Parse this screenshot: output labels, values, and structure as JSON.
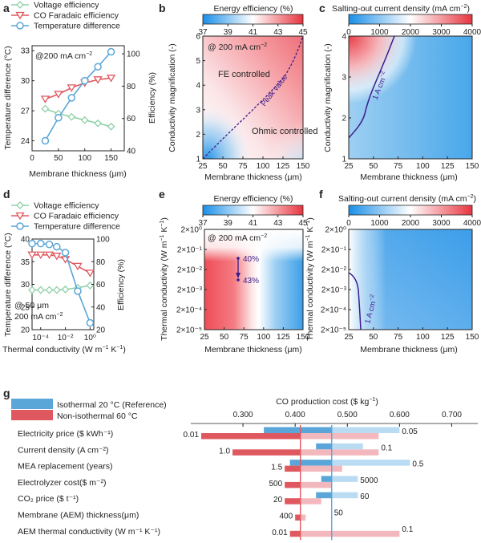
{
  "colors": {
    "blue": "#5aa6d8",
    "red": "#e0585f",
    "green": "#8fd1a8",
    "purple": "#3b1b8c",
    "dark_blue": "#2f5fa0",
    "pink": "#f3b8bd",
    "lightblue": "#b9dcf3"
  },
  "chart_data": [
    {
      "id": "a",
      "type": "line",
      "panel_letter": "a",
      "title": "",
      "annotation": "@200 mA cm⁻²",
      "annotation_html": "@200 mA cm<tspan dy='-4' font-size='7'>−2</tspan>",
      "xlabel": "Membrane thickness (μm)",
      "ylabel_left": "Temperature difference (°C)",
      "ylabel_right": "Efficiency (%)",
      "xlim": [
        0,
        175
      ],
      "ylim_left": [
        23,
        33.5
      ],
      "ylim_right": [
        40,
        105
      ],
      "x_ticks": [
        "0",
        "50",
        "100",
        "150"
      ],
      "y_ticks_left": [
        "24",
        "27",
        "30",
        "33"
      ],
      "y_ticks_right": [
        "40",
        "60",
        "80",
        "100"
      ],
      "legend": [
        "Voltage efficiency",
        "CO Faradaic efficiency",
        "Temperature difference"
      ],
      "series": [
        {
          "name": "Voltage efficiency",
          "axis": "right",
          "x": [
            25,
            50,
            75,
            100,
            125,
            150
          ],
          "y": [
            66,
            63,
            61,
            59,
            57,
            55
          ]
        },
        {
          "name": "CO Faradaic efficiency",
          "axis": "right",
          "x": [
            25,
            50,
            75,
            100,
            125,
            150
          ],
          "y": [
            72,
            75,
            79,
            82,
            84,
            85
          ]
        },
        {
          "name": "Temperature difference",
          "axis": "left",
          "x": [
            25,
            50,
            75,
            100,
            125,
            150
          ],
          "y": [
            24.0,
            26.3,
            28.3,
            30.0,
            31.4,
            32.9
          ]
        }
      ]
    },
    {
      "id": "b",
      "type": "heatmap",
      "panel_letter": "b",
      "colorbar_title": "Energy efficiency (%)",
      "colorbar_ticks": [
        "37",
        "39",
        "41",
        "43",
        "45"
      ],
      "xlabel": "Membrane thickness (μm)",
      "ylabel": "Conductivity magnification (-)",
      "xlim": [
        25,
        150
      ],
      "ylim": [
        1,
        6
      ],
      "x_ticks": [
        "25",
        "50",
        "75",
        "100",
        "125",
        "150"
      ],
      "y_ticks": [
        "1",
        "2",
        "3",
        "4",
        "5",
        "6"
      ],
      "annotations": [
        "@ 200 mA cm⁻²",
        "FE controlled",
        "Ohmic controlled",
        "Peak value"
      ]
    },
    {
      "id": "c",
      "type": "heatmap",
      "panel_letter": "c",
      "colorbar_title": "Salting-out current density (mA cm⁻²)",
      "colorbar_ticks": [
        "0",
        "1000",
        "2000",
        "3000",
        "4000"
      ],
      "xlabel": "Membrane thickness (μm)",
      "ylabel": "Conductivity magnification (-)",
      "xlim": [
        25,
        150
      ],
      "ylim": [
        1,
        4
      ],
      "x_ticks": [
        "25",
        "50",
        "75",
        "100",
        "125",
        "150"
      ],
      "y_ticks": [
        "1",
        "2",
        "3",
        "4"
      ],
      "contour_label": "1 A cm⁻²"
    },
    {
      "id": "d",
      "type": "line",
      "panel_letter": "d",
      "xlabel": "Thermal conductivity (W m⁻¹ K⁻¹)",
      "ylabel_left": "Temperature difference (°C)",
      "ylabel_right": "Efficiency (%)",
      "ylim_left": [
        20,
        40
      ],
      "ylim_right": [
        20,
        100
      ],
      "x_ticks": [
        "10⁻⁴",
        "10⁻²",
        "10⁰"
      ],
      "y_ticks_left": [
        "20",
        "25",
        "30",
        "35",
        "40"
      ],
      "y_ticks_right": [
        "20",
        "40",
        "60",
        "80",
        "100"
      ],
      "annotations": [
        "@ 50 μm",
        "200 mA cm⁻²"
      ],
      "legend": [
        "Voltage efficiency",
        "CO Faradaic efficiency",
        "Temperature difference"
      ],
      "series": [
        {
          "name": "Voltage efficiency",
          "axis": "right",
          "x": [
            2e-05,
            0.0001,
            0.0005,
            0.002,
            0.01,
            0.1,
            1
          ],
          "y": [
            55,
            55,
            55,
            55,
            55.5,
            57,
            59
          ]
        },
        {
          "name": "CO Faradaic efficiency",
          "axis": "right",
          "x": [
            2e-05,
            0.0001,
            0.0005,
            0.002,
            0.01,
            0.1,
            1
          ],
          "y": [
            86,
            86,
            86,
            85,
            82,
            76,
            70
          ]
        },
        {
          "name": "Temperature difference",
          "axis": "left",
          "x": [
            2e-05,
            0.0001,
            0.0005,
            0.002,
            0.01,
            0.1,
            1
          ],
          "y": [
            39,
            39,
            38.8,
            38.3,
            37,
            28.5,
            21.5
          ]
        }
      ]
    },
    {
      "id": "e",
      "type": "heatmap",
      "panel_letter": "e",
      "colorbar_title": "Energy efficiency (%)",
      "colorbar_ticks": [
        "37",
        "39",
        "41",
        "43",
        "45"
      ],
      "xlabel": "Membrane thickness (μm)",
      "ylabel": "Thermal conductivity (W m⁻¹ K⁻¹)",
      "x_ticks": [
        "25",
        "50",
        "75",
        "100",
        "125",
        "150"
      ],
      "y_ticks": [
        "2×10⁰",
        "2×10⁻¹",
        "2×10⁻²",
        "2×10⁻³",
        "2×10⁻⁴",
        "2×10⁻⁵"
      ],
      "annotations": [
        "@ 200 mA cm⁻²",
        "40%",
        "43%"
      ]
    },
    {
      "id": "f",
      "type": "heatmap",
      "panel_letter": "f",
      "colorbar_title": "Salting-out current density (mA cm⁻²)",
      "colorbar_ticks": [
        "0",
        "1000",
        "2000",
        "3000",
        "4000"
      ],
      "xlabel": "Membrane thickness (μm)",
      "ylabel": "Thermal conductivity (W m⁻¹ K⁻¹)",
      "x_ticks": [
        "25",
        "50",
        "75",
        "100",
        "125",
        "150"
      ],
      "y_ticks": [
        "2×10⁰",
        "2×10⁻¹",
        "2×10⁻²",
        "2×10⁻³",
        "2×10⁻⁴",
        "2×10⁻⁵"
      ],
      "contour_label": "1 A cm⁻²"
    },
    {
      "id": "g",
      "type": "bar",
      "panel_letter": "g",
      "orientation": "horizontal",
      "title": "CO production cost ($ kg⁻¹)",
      "xlim": [
        0.2,
        0.75
      ],
      "x_ticks": [
        "0.300",
        "0.400",
        "0.500",
        "0.600",
        "0.700"
      ],
      "x_tick_values": [
        0.3,
        0.4,
        0.5,
        0.6,
        0.7
      ],
      "legend": [
        "Isothermal 20 °C (Reference)",
        "Non-isothermal 60 °C"
      ],
      "baseline_isothermal": 0.47,
      "baseline_nonisothermal": 0.41,
      "baseline_labels": [
        "0.41",
        "0.47"
      ],
      "categories": [
        {
          "label": "Electricity price ($ kWh⁻¹)",
          "iso": [
            0.34,
            0.6
          ],
          "non": [
            0.22,
            0.56
          ],
          "low_label": "0.01",
          "high_label": "0.05"
        },
        {
          "label": "Current density (A cm⁻²)",
          "iso": [
            0.44,
            0.53
          ],
          "non": [
            0.28,
            0.56
          ],
          "low_label": "1.0",
          "high_label": "0.1"
        },
        {
          "label": "MEA replacement (years)",
          "iso": [
            0.39,
            0.62
          ],
          "non": [
            0.38,
            0.49
          ],
          "low_label": "1.5",
          "high_label": "0.5"
        },
        {
          "label": "Electrolyzer cost($ m⁻²)",
          "iso": [
            0.45,
            0.52
          ],
          "non": [
            0.38,
            0.47
          ],
          "low_label": "500",
          "high_label": "5000"
        },
        {
          "label": "CO₂ price ($ t⁻¹)",
          "iso": [
            0.44,
            0.52
          ],
          "non": [
            0.38,
            0.45
          ],
          "low_label": "20",
          "high_label": "60"
        },
        {
          "label": "Membrane (AEM) thickness(μm)",
          "iso": [
            0.47,
            0.47
          ],
          "non": [
            0.4,
            0.42
          ],
          "low_label": "400",
          "high_label": "50"
        },
        {
          "label": "AEM thermal conductivity (W m⁻¹ K⁻¹)",
          "iso": [
            0.47,
            0.47
          ],
          "non": [
            0.39,
            0.6
          ],
          "low_label": "0.01",
          "high_label": "0.1"
        }
      ]
    }
  ]
}
